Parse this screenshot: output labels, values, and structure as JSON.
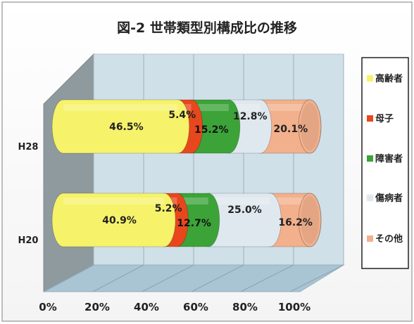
{
  "chart_data": {
    "type": "bar",
    "orientation": "horizontal",
    "stacked": "percent",
    "style": "3d-cylinder",
    "title": "図-2 世帯類型別構成比の推移",
    "categories": [
      "H28",
      "H20"
    ],
    "series": [
      {
        "name": "高齢者",
        "color": "#f6f26a",
        "values": [
          46.5,
          40.9
        ],
        "labels": [
          "46.5%",
          "40.9%"
        ]
      },
      {
        "name": "母子",
        "color": "#e8471d",
        "values": [
          5.4,
          5.2
        ],
        "labels": [
          "5.4%",
          "5.2%"
        ]
      },
      {
        "name": "障害者",
        "color": "#3ca338",
        "values": [
          15.2,
          12.7
        ],
        "labels": [
          "15.2%",
          "12.7%"
        ]
      },
      {
        "name": "傷病者",
        "color": "#dfe8ee",
        "values": [
          12.8,
          25.0
        ],
        "labels": [
          "12.8%",
          "25.0%"
        ]
      },
      {
        "name": "その他",
        "color": "#f2b08c",
        "values": [
          20.1,
          16.2
        ],
        "labels": [
          "20.1%",
          "16.2%"
        ]
      }
    ],
    "x_ticks": [
      "0%",
      "20%",
      "40%",
      "60%",
      "80%",
      "100%"
    ],
    "xlim": [
      0,
      100
    ],
    "grid": true,
    "legend": "right"
  }
}
